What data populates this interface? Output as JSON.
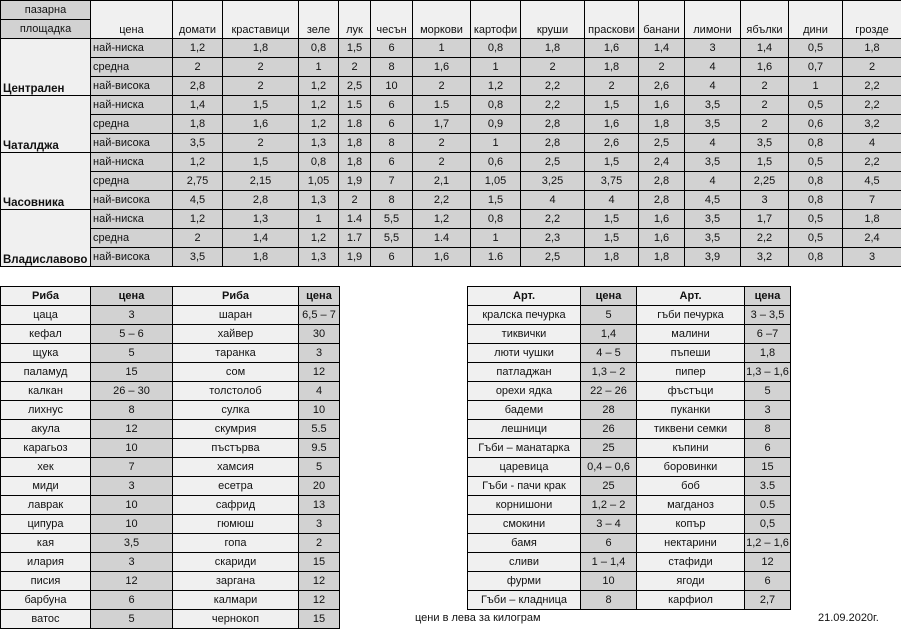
{
  "market_table": {
    "header_market_line1": "пазарна",
    "header_market_line2": "площадка",
    "header_price": "цена",
    "products": [
      "домати",
      "краставици",
      "зеле",
      "лук",
      "чесън",
      "моркови",
      "картофи",
      "круши",
      "праскови",
      "банани",
      "лимони",
      "ябълки",
      "дини",
      "грозде"
    ],
    "price_levels": [
      "най-ниска",
      "средна",
      "най-висока"
    ],
    "markets": [
      {
        "name": "Централен",
        "rows": [
          [
            "1,2",
            "1,8",
            "0,8",
            "1,5",
            "6",
            "1",
            "0,8",
            "1,8",
            "1,6",
            "1,4",
            "3",
            "1,4",
            "0,5",
            "1,8"
          ],
          [
            "2",
            "2",
            "1",
            "2",
            "8",
            "1,6",
            "1",
            "2",
            "1,8",
            "2",
            "4",
            "1,6",
            "0,7",
            "2"
          ],
          [
            "2,8",
            "2",
            "1,2",
            "2,5",
            "10",
            "2",
            "1,2",
            "2,2",
            "2",
            "2,6",
            "4",
            "2",
            "1",
            "2,2"
          ]
        ]
      },
      {
        "name": "Чаталджа",
        "rows": [
          [
            "1,4",
            "1,5",
            "1,2",
            "1.5",
            "6",
            "1.5",
            "0,8",
            "2,2",
            "1,5",
            "1,6",
            "3,5",
            "2",
            "0,5",
            "2,2"
          ],
          [
            "1,8",
            "1,6",
            "1,2",
            "1.8",
            "6",
            "1,7",
            "0,9",
            "2,8",
            "1,6",
            "1,8",
            "3,5",
            "2",
            "0,6",
            "3,2"
          ],
          [
            "3,5",
            "2",
            "1,3",
            "1,8",
            "8",
            "2",
            "1",
            "2,8",
            "2,6",
            "2,5",
            "4",
            "3,5",
            "0,8",
            "4"
          ]
        ]
      },
      {
        "name": "Часовника",
        "rows": [
          [
            "1,2",
            "1,5",
            "0,8",
            "1,8",
            "6",
            "2",
            "0,6",
            "2,5",
            "1,5",
            "2,4",
            "3,5",
            "1,5",
            "0,5",
            "2,2"
          ],
          [
            "2,75",
            "2,15",
            "1,05",
            "1,9",
            "7",
            "2,1",
            "1,05",
            "3,25",
            "3,75",
            "2,8",
            "4",
            "2,25",
            "0,8",
            "4,5"
          ],
          [
            "4,5",
            "2,8",
            "1,3",
            "2",
            "8",
            "2,2",
            "1,5",
            "4",
            "4",
            "2,8",
            "4,5",
            "3",
            "0,8",
            "7"
          ]
        ]
      },
      {
        "name": "Владиславово",
        "rows": [
          [
            "1,2",
            "1,3",
            "1",
            "1.4",
            "5,5",
            "1,2",
            "0,8",
            "2,2",
            "1,5",
            "1,6",
            "3,5",
            "1,7",
            "0,5",
            "1,8"
          ],
          [
            "2",
            "1,4",
            "1,2",
            "1.7",
            "5,5",
            "1.4",
            "1",
            "2,3",
            "1,5",
            "1,6",
            "3,5",
            "2,2",
            "0,5",
            "2,4"
          ],
          [
            "3,5",
            "1,8",
            "1,3",
            "1,9",
            "6",
            "1,6",
            "1.6",
            "2,5",
            "1,8",
            "1,8",
            "3,9",
            "3,2",
            "0,8",
            "3"
          ]
        ]
      }
    ]
  },
  "fish_table": {
    "headers": [
      "Риба",
      "цена",
      "Риба",
      "цена"
    ],
    "rows": [
      [
        "цаца",
        "3",
        "шаран",
        "6,5 – 7"
      ],
      [
        "кефал",
        "5 – 6",
        "хайвер",
        "30"
      ],
      [
        "щука",
        "5",
        "таранка",
        "3"
      ],
      [
        "паламуд",
        "15",
        "сом",
        "12"
      ],
      [
        "калкан",
        "26 – 30",
        "толстолоб",
        "4"
      ],
      [
        "лихнус",
        "8",
        "сулка",
        "10"
      ],
      [
        "акула",
        "12",
        "скумрия",
        "5.5"
      ],
      [
        "карагьоз",
        "10",
        "пъстърва",
        "9.5"
      ],
      [
        "хек",
        "7",
        "хамсия",
        "5"
      ],
      [
        "миди",
        "3",
        "есетра",
        "20"
      ],
      [
        "лаврак",
        "10",
        "сафрид",
        "13"
      ],
      [
        "ципура",
        "10",
        "гюмюш",
        "3"
      ],
      [
        "кая",
        "3,5",
        "гопа",
        "2"
      ],
      [
        "илария",
        "3",
        "скариди",
        "15"
      ],
      [
        "писия",
        "12",
        "заргана",
        "12"
      ],
      [
        "барбуна",
        "6",
        "калмари",
        "12"
      ],
      [
        "ватос",
        "5",
        "чернокоп",
        "15"
      ]
    ]
  },
  "misc_table": {
    "headers": [
      "Арт.",
      "цена",
      "Арт.",
      "цена"
    ],
    "rows": [
      [
        "кралска печурка",
        "5",
        "гъби печурка",
        "3 – 3,5"
      ],
      [
        "тиквички",
        "1,4",
        "малини",
        "6 –7"
      ],
      [
        "люти чушки",
        "4 – 5",
        "пъпеши",
        "1,8"
      ],
      [
        "патладжан",
        "1,3 – 2",
        "пипер",
        "1,3 – 1,6"
      ],
      [
        "орехи ядка",
        "22 – 26",
        "фъстъци",
        "5"
      ],
      [
        "бадеми",
        "28",
        "пуканки",
        "3"
      ],
      [
        "лешници",
        "26",
        "тиквени семки",
        "8"
      ],
      [
        "Гъби – манатарка",
        "25",
        "къпини",
        "6"
      ],
      [
        "царевица",
        "0,4 – 0,6",
        "боровинки",
        "15"
      ],
      [
        "Гъби -  пачи крак",
        "25",
        "боб",
        "3.5"
      ],
      [
        "корнишони",
        "1,2 – 2",
        "магданоз",
        "0.5"
      ],
      [
        "смокини",
        "3 – 4",
        "копър",
        "0,5"
      ],
      [
        "бамя",
        "6",
        "нектарини",
        "1,2 – 1,6"
      ],
      [
        "сливи",
        "1 – 1,4",
        "стафиди",
        "12"
      ],
      [
        "фурми",
        "10",
        "ягоди",
        "6"
      ],
      [
        "Гъби – кладница",
        "8",
        "карфиол",
        "2,7"
      ]
    ]
  },
  "footer": {
    "note": "цени в лева за килограм",
    "date": "21.09.2020г."
  },
  "colors": {
    "cell_gray": "#d2d2d2",
    "cell_light": "#f0f0f0",
    "border": "#000000"
  }
}
